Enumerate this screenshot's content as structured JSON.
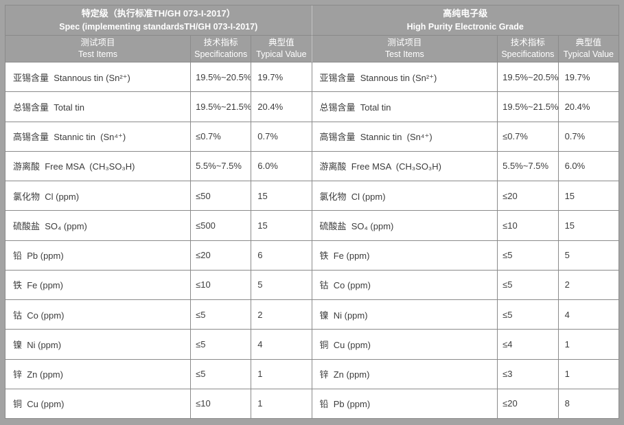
{
  "colors": {
    "page_bg": "#a3a3a3",
    "header_bg": "#9f9f9f",
    "grid_line": "#8a8a8a",
    "cell_bg": "#ffffff",
    "header_text": "#ffffff",
    "body_text": "#3c3c3c"
  },
  "tables": [
    {
      "id": "spec-grade",
      "header": {
        "title_zh": "特定级（执行标准TH/GH 073-I-2017）",
        "title_en": "Spec (implementing standardsTH/GH 073-I-2017)"
      },
      "columns": {
        "item_zh": "测试项目",
        "item_en": "Test Items",
        "spec_zh": "技术指标",
        "spec_en": "Specifications",
        "typical_zh": "典型值",
        "typical_en": "Typical Value"
      },
      "rows": [
        {
          "item": "亚锡含量  Stannous tin (Sn²⁺)",
          "spec": "19.5%~20.5%",
          "typical": "19.7%"
        },
        {
          "item": "总锡含量  Total tin",
          "spec": "19.5%~21.5%",
          "typical": "20.4%"
        },
        {
          "item": "高锡含量  Stannic tin  (Sn⁴⁺)",
          "spec": "≤0.7%",
          "typical": "0.7%"
        },
        {
          "item": "游离酸  Free MSA  (CH₃SO₃H)",
          "spec": "5.5%~7.5%",
          "typical": "6.0%"
        },
        {
          "item": "氯化物  Cl (ppm)",
          "spec": "≤50",
          "typical": "15"
        },
        {
          "item": "硫酸盐  SO₄ (ppm)",
          "spec": "≤500",
          "typical": "15"
        },
        {
          "item": "铅  Pb (ppm)",
          "spec": "≤20",
          "typical": "6"
        },
        {
          "item": "铁  Fe (ppm)",
          "spec": "≤10",
          "typical": "5"
        },
        {
          "item": "钴  Co (ppm)",
          "spec": "≤5",
          "typical": "2"
        },
        {
          "item": "镍  Ni (ppm)",
          "spec": "≤5",
          "typical": "4"
        },
        {
          "item": "锌  Zn (ppm)",
          "spec": "≤5",
          "typical": "1"
        },
        {
          "item": "铜  Cu (ppm)",
          "spec": "≤10",
          "typical": "1"
        }
      ]
    },
    {
      "id": "high-purity-grade",
      "header": {
        "title_zh": "高纯电子级",
        "title_en": "High Purity Electronic Grade"
      },
      "columns": {
        "item_zh": "测试项目",
        "item_en": "Test Items",
        "spec_zh": "技术指标",
        "spec_en": "Specifications",
        "typical_zh": "典型值",
        "typical_en": "Typical Value"
      },
      "rows": [
        {
          "item": "亚锡含量  Stannous tin (Sn²⁺)",
          "spec": "19.5%~20.5%",
          "typical": "19.7%"
        },
        {
          "item": "总锡含量  Total tin",
          "spec": "19.5%~21.5%",
          "typical": "20.4%"
        },
        {
          "item": "高锡含量  Stannic tin  (Sn⁴⁺)",
          "spec": "≤0.7%",
          "typical": "0.7%"
        },
        {
          "item": "游离酸  Free MSA  (CH₃SO₃H)",
          "spec": "5.5%~7.5%",
          "typical": "6.0%"
        },
        {
          "item": "氯化物  Cl (ppm)",
          "spec": "≤20",
          "typical": "15"
        },
        {
          "item": "硫酸盐  SO₄ (ppm)",
          "spec": "≤10",
          "typical": "15"
        },
        {
          "item": "铁  Fe (ppm)",
          "spec": "≤5",
          "typical": "5"
        },
        {
          "item": "钴  Co (ppm)",
          "spec": "≤5",
          "typical": "2"
        },
        {
          "item": "镍  Ni (ppm)",
          "spec": "≤5",
          "typical": "4"
        },
        {
          "item": "铜  Cu (ppm)",
          "spec": "≤4",
          "typical": "1"
        },
        {
          "item": "锌  Zn (ppm)",
          "spec": "≤3",
          "typical": "1"
        },
        {
          "item": "铅  Pb (ppm)",
          "spec": "≤20",
          "typical": "8"
        }
      ]
    }
  ]
}
